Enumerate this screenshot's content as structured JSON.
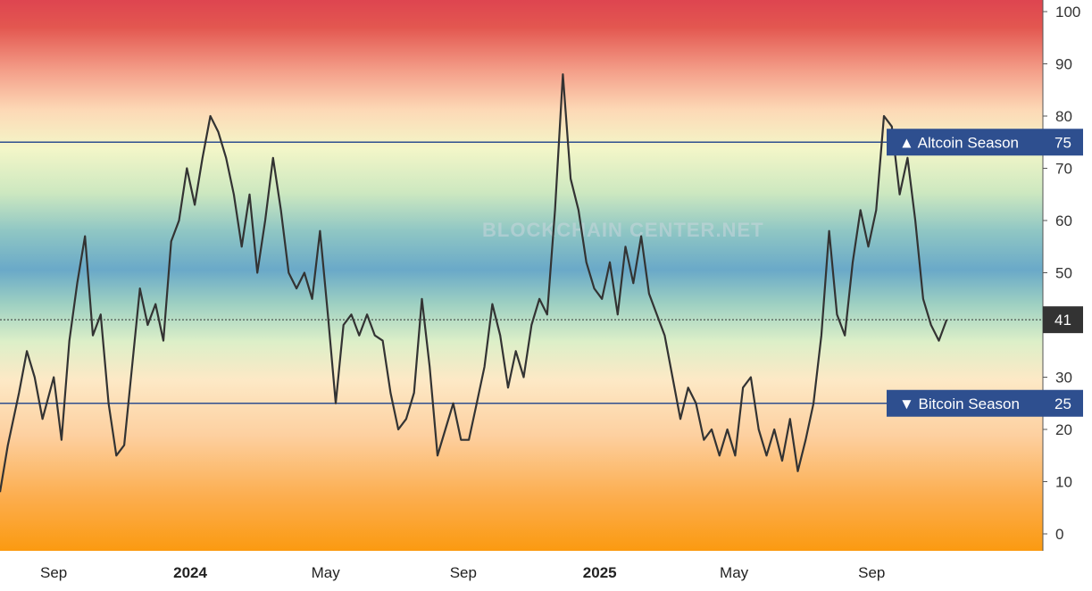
{
  "chart_data": {
    "type": "line",
    "title": "",
    "xlabel": "",
    "ylabel": "",
    "ylim": [
      0,
      100
    ],
    "y_ticks": [
      "0",
      "10",
      "20",
      "30",
      "40",
      "50",
      "60",
      "70",
      "80",
      "90",
      "100"
    ],
    "x_ticks": [
      {
        "label": "Sep",
        "date": "2023-09-01",
        "bold": false
      },
      {
        "label": "2024",
        "date": "2024-01-01",
        "bold": true
      },
      {
        "label": "May",
        "date": "2024-05-01",
        "bold": false
      },
      {
        "label": "Sep",
        "date": "2024-09-01",
        "bold": false
      },
      {
        "label": "2025",
        "date": "2025-01-01",
        "bold": true
      },
      {
        "label": "May",
        "date": "2025-05-01",
        "bold": false
      },
      {
        "label": "Sep",
        "date": "2025-09-01",
        "bold": false
      }
    ],
    "x_range": [
      "2023-07-15",
      "2026-02-01"
    ],
    "background": "vertical color gradient from orange at 0 through yellow, green and blue near 50 to red at 100",
    "watermark": "BLOCKCHAIN CENTER.NET",
    "grid": false,
    "series": [
      {
        "color": "#333333",
        "points": [
          [
            "2023-07-15",
            8
          ],
          [
            "2023-07-22",
            17
          ],
          [
            "2023-08-01",
            27
          ],
          [
            "2023-08-08",
            35
          ],
          [
            "2023-08-15",
            30
          ],
          [
            "2023-08-22",
            22
          ],
          [
            "2023-09-01",
            30
          ],
          [
            "2023-09-08",
            18
          ],
          [
            "2023-09-15",
            37
          ],
          [
            "2023-09-22",
            48
          ],
          [
            "2023-09-29",
            57
          ],
          [
            "2023-10-06",
            38
          ],
          [
            "2023-10-13",
            42
          ],
          [
            "2023-10-20",
            25
          ],
          [
            "2023-10-27",
            15
          ],
          [
            "2023-11-03",
            17
          ],
          [
            "2023-11-10",
            32
          ],
          [
            "2023-11-17",
            47
          ],
          [
            "2023-11-24",
            40
          ],
          [
            "2023-12-01",
            44
          ],
          [
            "2023-12-08",
            37
          ],
          [
            "2023-12-15",
            56
          ],
          [
            "2023-12-22",
            60
          ],
          [
            "2023-12-29",
            70
          ],
          [
            "2024-01-05",
            63
          ],
          [
            "2024-01-12",
            72
          ],
          [
            "2024-01-19",
            80
          ],
          [
            "2024-01-26",
            77
          ],
          [
            "2024-02-02",
            72
          ],
          [
            "2024-02-09",
            65
          ],
          [
            "2024-02-16",
            55
          ],
          [
            "2024-02-23",
            65
          ],
          [
            "2024-03-01",
            50
          ],
          [
            "2024-03-08",
            60
          ],
          [
            "2024-03-15",
            72
          ],
          [
            "2024-03-22",
            62
          ],
          [
            "2024-03-29",
            50
          ],
          [
            "2024-04-05",
            47
          ],
          [
            "2024-04-12",
            50
          ],
          [
            "2024-04-19",
            45
          ],
          [
            "2024-04-26",
            58
          ],
          [
            "2024-05-03",
            42
          ],
          [
            "2024-05-10",
            25
          ],
          [
            "2024-05-17",
            40
          ],
          [
            "2024-05-24",
            42
          ],
          [
            "2024-05-31",
            38
          ],
          [
            "2024-06-07",
            42
          ],
          [
            "2024-06-14",
            38
          ],
          [
            "2024-06-21",
            37
          ],
          [
            "2024-06-28",
            27
          ],
          [
            "2024-07-05",
            20
          ],
          [
            "2024-07-12",
            22
          ],
          [
            "2024-07-19",
            27
          ],
          [
            "2024-07-26",
            45
          ],
          [
            "2024-08-02",
            32
          ],
          [
            "2024-08-09",
            15
          ],
          [
            "2024-08-16",
            20
          ],
          [
            "2024-08-23",
            25
          ],
          [
            "2024-08-30",
            18
          ],
          [
            "2024-09-06",
            18
          ],
          [
            "2024-09-13",
            25
          ],
          [
            "2024-09-20",
            32
          ],
          [
            "2024-09-27",
            44
          ],
          [
            "2024-10-04",
            38
          ],
          [
            "2024-10-11",
            28
          ],
          [
            "2024-10-18",
            35
          ],
          [
            "2024-10-25",
            30
          ],
          [
            "2024-11-01",
            40
          ],
          [
            "2024-11-08",
            45
          ],
          [
            "2024-11-15",
            42
          ],
          [
            "2024-11-22",
            62
          ],
          [
            "2024-11-29",
            88
          ],
          [
            "2024-12-06",
            68
          ],
          [
            "2024-12-13",
            62
          ],
          [
            "2024-12-20",
            52
          ],
          [
            "2024-12-27",
            47
          ],
          [
            "2025-01-03",
            45
          ],
          [
            "2025-01-10",
            52
          ],
          [
            "2025-01-17",
            42
          ],
          [
            "2025-01-24",
            55
          ],
          [
            "2025-01-31",
            48
          ],
          [
            "2025-02-07",
            57
          ],
          [
            "2025-02-14",
            46
          ],
          [
            "2025-02-21",
            42
          ],
          [
            "2025-02-28",
            38
          ],
          [
            "2025-03-07",
            30
          ],
          [
            "2025-03-14",
            22
          ],
          [
            "2025-03-21",
            28
          ],
          [
            "2025-03-28",
            25
          ],
          [
            "2025-04-04",
            18
          ],
          [
            "2025-04-11",
            20
          ],
          [
            "2025-04-18",
            15
          ],
          [
            "2025-04-25",
            20
          ],
          [
            "2025-05-02",
            15
          ],
          [
            "2025-05-09",
            28
          ],
          [
            "2025-05-16",
            30
          ],
          [
            "2025-05-23",
            20
          ],
          [
            "2025-05-30",
            15
          ],
          [
            "2025-06-06",
            20
          ],
          [
            "2025-06-13",
            14
          ],
          [
            "2025-06-20",
            22
          ],
          [
            "2025-06-27",
            12
          ],
          [
            "2025-07-04",
            18
          ],
          [
            "2025-07-11",
            25
          ],
          [
            "2025-07-18",
            38
          ],
          [
            "2025-07-25",
            58
          ],
          [
            "2025-08-01",
            42
          ],
          [
            "2025-08-08",
            38
          ],
          [
            "2025-08-15",
            52
          ],
          [
            "2025-08-22",
            62
          ],
          [
            "2025-08-29",
            55
          ],
          [
            "2025-09-05",
            62
          ],
          [
            "2025-09-12",
            80
          ],
          [
            "2025-09-19",
            78
          ],
          [
            "2025-09-26",
            65
          ],
          [
            "2025-10-03",
            72
          ],
          [
            "2025-10-10",
            60
          ],
          [
            "2025-10-17",
            45
          ],
          [
            "2025-10-24",
            40
          ],
          [
            "2025-10-31",
            37
          ],
          [
            "2025-11-07",
            41
          ]
        ]
      }
    ],
    "current": {
      "value": 41,
      "label": "41",
      "badge_color": "#333333"
    },
    "thresholds": [
      {
        "value": 75,
        "label": "▲ Altcoin Season",
        "value_label": "75",
        "color": "#2e4f8f"
      },
      {
        "value": 25,
        "label": "▼ Bitcoin Season",
        "value_label": "25",
        "color": "#2e4f8f"
      }
    ]
  }
}
